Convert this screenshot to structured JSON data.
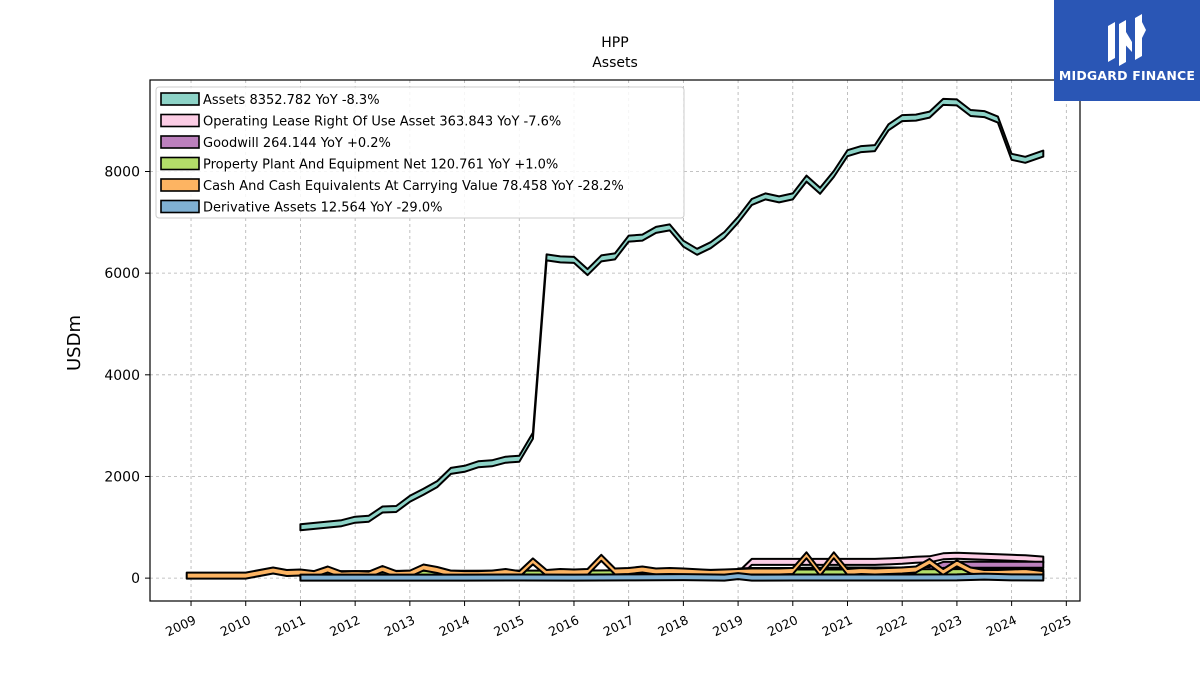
{
  "chart_data": {
    "type": "area",
    "title": "HPP",
    "subtitle": "Assets",
    "xlabel": "",
    "ylabel": "USDm",
    "ylim": [
      -450,
      9800
    ],
    "xlim": [
      2008.25,
      2025.25
    ],
    "yticks": [
      0,
      2000,
      4000,
      6000,
      8000
    ],
    "xticks": [
      "2009",
      "2010",
      "2011",
      "2012",
      "2013",
      "2014",
      "2015",
      "2016",
      "2017",
      "2018",
      "2019",
      "2020",
      "2021",
      "2022",
      "2023",
      "2024",
      "2025"
    ],
    "grid": true,
    "legend_position": "top-left",
    "series": [
      {
        "name": "Assets",
        "legend": "Assets  8352.782 YoY -8.3%",
        "color": "#8dd3c7",
        "x": [
          2011.0,
          2011.75,
          2012.0,
          2012.25,
          2012.5,
          2012.75,
          2013.0,
          2013.25,
          2013.5,
          2013.75,
          2014.0,
          2014.25,
          2014.5,
          2014.75,
          2015.0,
          2015.25,
          2015.5,
          2015.75,
          2016.0,
          2016.25,
          2016.5,
          2016.75,
          2017.0,
          2017.25,
          2017.5,
          2017.75,
          2018.0,
          2018.25,
          2018.5,
          2018.75,
          2019.0,
          2019.25,
          2019.5,
          2019.75,
          2020.0,
          2020.25,
          2020.5,
          2020.75,
          2021.0,
          2021.25,
          2021.5,
          2021.75,
          2022.0,
          2022.25,
          2022.5,
          2022.75,
          2023.0,
          2023.25,
          2023.5,
          2023.75,
          2024.0,
          2024.25,
          2024.58
        ],
        "values": [
          1000,
          1080,
          1150,
          1170,
          1350,
          1360,
          1560,
          1700,
          1850,
          2110,
          2150,
          2240,
          2260,
          2330,
          2350,
          2800,
          6310,
          6270,
          6260,
          6020,
          6290,
          6330,
          6680,
          6700,
          6850,
          6900,
          6580,
          6420,
          6550,
          6750,
          7050,
          7400,
          7510,
          7450,
          7510,
          7860,
          7620,
          7950,
          8360,
          8440,
          8460,
          8870,
          9050,
          9060,
          9120,
          9370,
          9360,
          9150,
          9130,
          9020,
          8290,
          8230,
          8352.782
        ]
      },
      {
        "name": "Operating Lease Right Of Use Asset",
        "legend": "Operating Lease Right Of Use Asset  363.843 YoY -7.6%",
        "color": "#fccde5",
        "x": [
          2019.0,
          2019.25,
          2019.5,
          2019.75,
          2020.0,
          2020.25,
          2020.5,
          2020.75,
          2021.0,
          2021.25,
          2021.5,
          2021.75,
          2022.0,
          2022.25,
          2022.5,
          2022.75,
          2023.0,
          2023.25,
          2023.5,
          2023.75,
          2024.0,
          2024.25,
          2024.58
        ],
        "values": [
          60,
          320,
          320,
          320,
          320,
          320,
          320,
          320,
          320,
          320,
          320,
          330,
          340,
          360,
          370,
          430,
          440,
          430,
          420,
          410,
          400,
          390,
          363.843
        ]
      },
      {
        "name": "Goodwill",
        "legend": "Goodwill  264.144 YoY +0.2%",
        "color": "#bc80bd",
        "x": [
          2019.0,
          2019.25,
          2019.5,
          2019.75,
          2020.0,
          2020.25,
          2020.5,
          2020.75,
          2021.0,
          2021.25,
          2021.5,
          2021.75,
          2022.0,
          2022.25,
          2022.5,
          2022.75,
          2023.0,
          2023.25,
          2023.5,
          2023.75,
          2024.0,
          2024.25,
          2024.58
        ],
        "values": [
          130,
          140,
          140,
          140,
          140,
          145,
          145,
          150,
          150,
          150,
          150,
          150,
          150,
          160,
          160,
          260,
          263,
          263,
          263,
          263,
          264,
          264,
          264.144
        ]
      },
      {
        "name": "Property Plant And Equipment Net",
        "legend": "Property Plant And Equipment Net  120.761 YoY +1.0%",
        "color": "#b3de69",
        "x": [
          2011.0,
          2012.0,
          2013.0,
          2014.0,
          2015.0,
          2016.0,
          2017.0,
          2018.0,
          2019.0,
          2020.0,
          2021.0,
          2022.0,
          2023.0,
          2024.0,
          2024.58
        ],
        "values": [
          80,
          80,
          85,
          85,
          90,
          90,
          95,
          100,
          105,
          110,
          110,
          115,
          118,
          120,
          120.761
        ]
      },
      {
        "name": "Cash And Cash Equivalents At Carrying Value",
        "legend": "Cash And Cash Equivalents At Carrying Value  78.458 YoY -28.2%",
        "color": "#fdb462",
        "x": [
          2008.92,
          2010.0,
          2010.5,
          2010.75,
          2011.0,
          2011.25,
          2011.5,
          2011.75,
          2012.0,
          2012.25,
          2012.5,
          2012.75,
          2013.0,
          2013.25,
          2013.5,
          2013.75,
          2014.0,
          2014.25,
          2014.5,
          2014.75,
          2015.0,
          2015.25,
          2015.5,
          2015.75,
          2016.0,
          2016.25,
          2016.5,
          2016.75,
          2017.0,
          2017.25,
          2017.5,
          2017.75,
          2018.0,
          2018.5,
          2019.0,
          2019.25,
          2019.5,
          2019.75,
          2020.0,
          2020.25,
          2020.5,
          2020.75,
          2021.0,
          2021.25,
          2021.5,
          2021.75,
          2022.0,
          2022.25,
          2022.5,
          2022.75,
          2023.0,
          2023.25,
          2023.5,
          2023.75,
          2024.0,
          2024.25,
          2024.58
        ],
        "values": [
          50,
          50,
          150,
          100,
          110,
          80,
          170,
          70,
          80,
          70,
          180,
          80,
          90,
          210,
          160,
          90,
          80,
          80,
          90,
          120,
          80,
          330,
          100,
          120,
          110,
          120,
          400,
          130,
          140,
          170,
          130,
          140,
          130,
          100,
          120,
          130,
          130,
          130,
          140,
          450,
          100,
          450,
          120,
          140,
          130,
          140,
          150,
          170,
          320,
          120,
          290,
          150,
          100,
          100,
          110,
          120,
          78.458
        ]
      },
      {
        "name": "Derivative Assets",
        "legend": "Derivative Assets  12.564 YoY -29.0%",
        "color": "#80b1d3",
        "x": [
          2011.0,
          2012.0,
          2013.0,
          2014.0,
          2015.0,
          2016.0,
          2017.0,
          2018.0,
          2018.75,
          2019.0,
          2019.25,
          2020.0,
          2021.0,
          2022.0,
          2023.0,
          2023.5,
          2024.0,
          2024.58
        ],
        "values": [
          10,
          10,
          10,
          10,
          12,
          10,
          15,
          20,
          10,
          40,
          10,
          12,
          12,
          12,
          15,
          30,
          15,
          12.564
        ]
      }
    ]
  },
  "brand": {
    "name": "MIDGARD FINANCE",
    "background": "#2a56b5"
  }
}
